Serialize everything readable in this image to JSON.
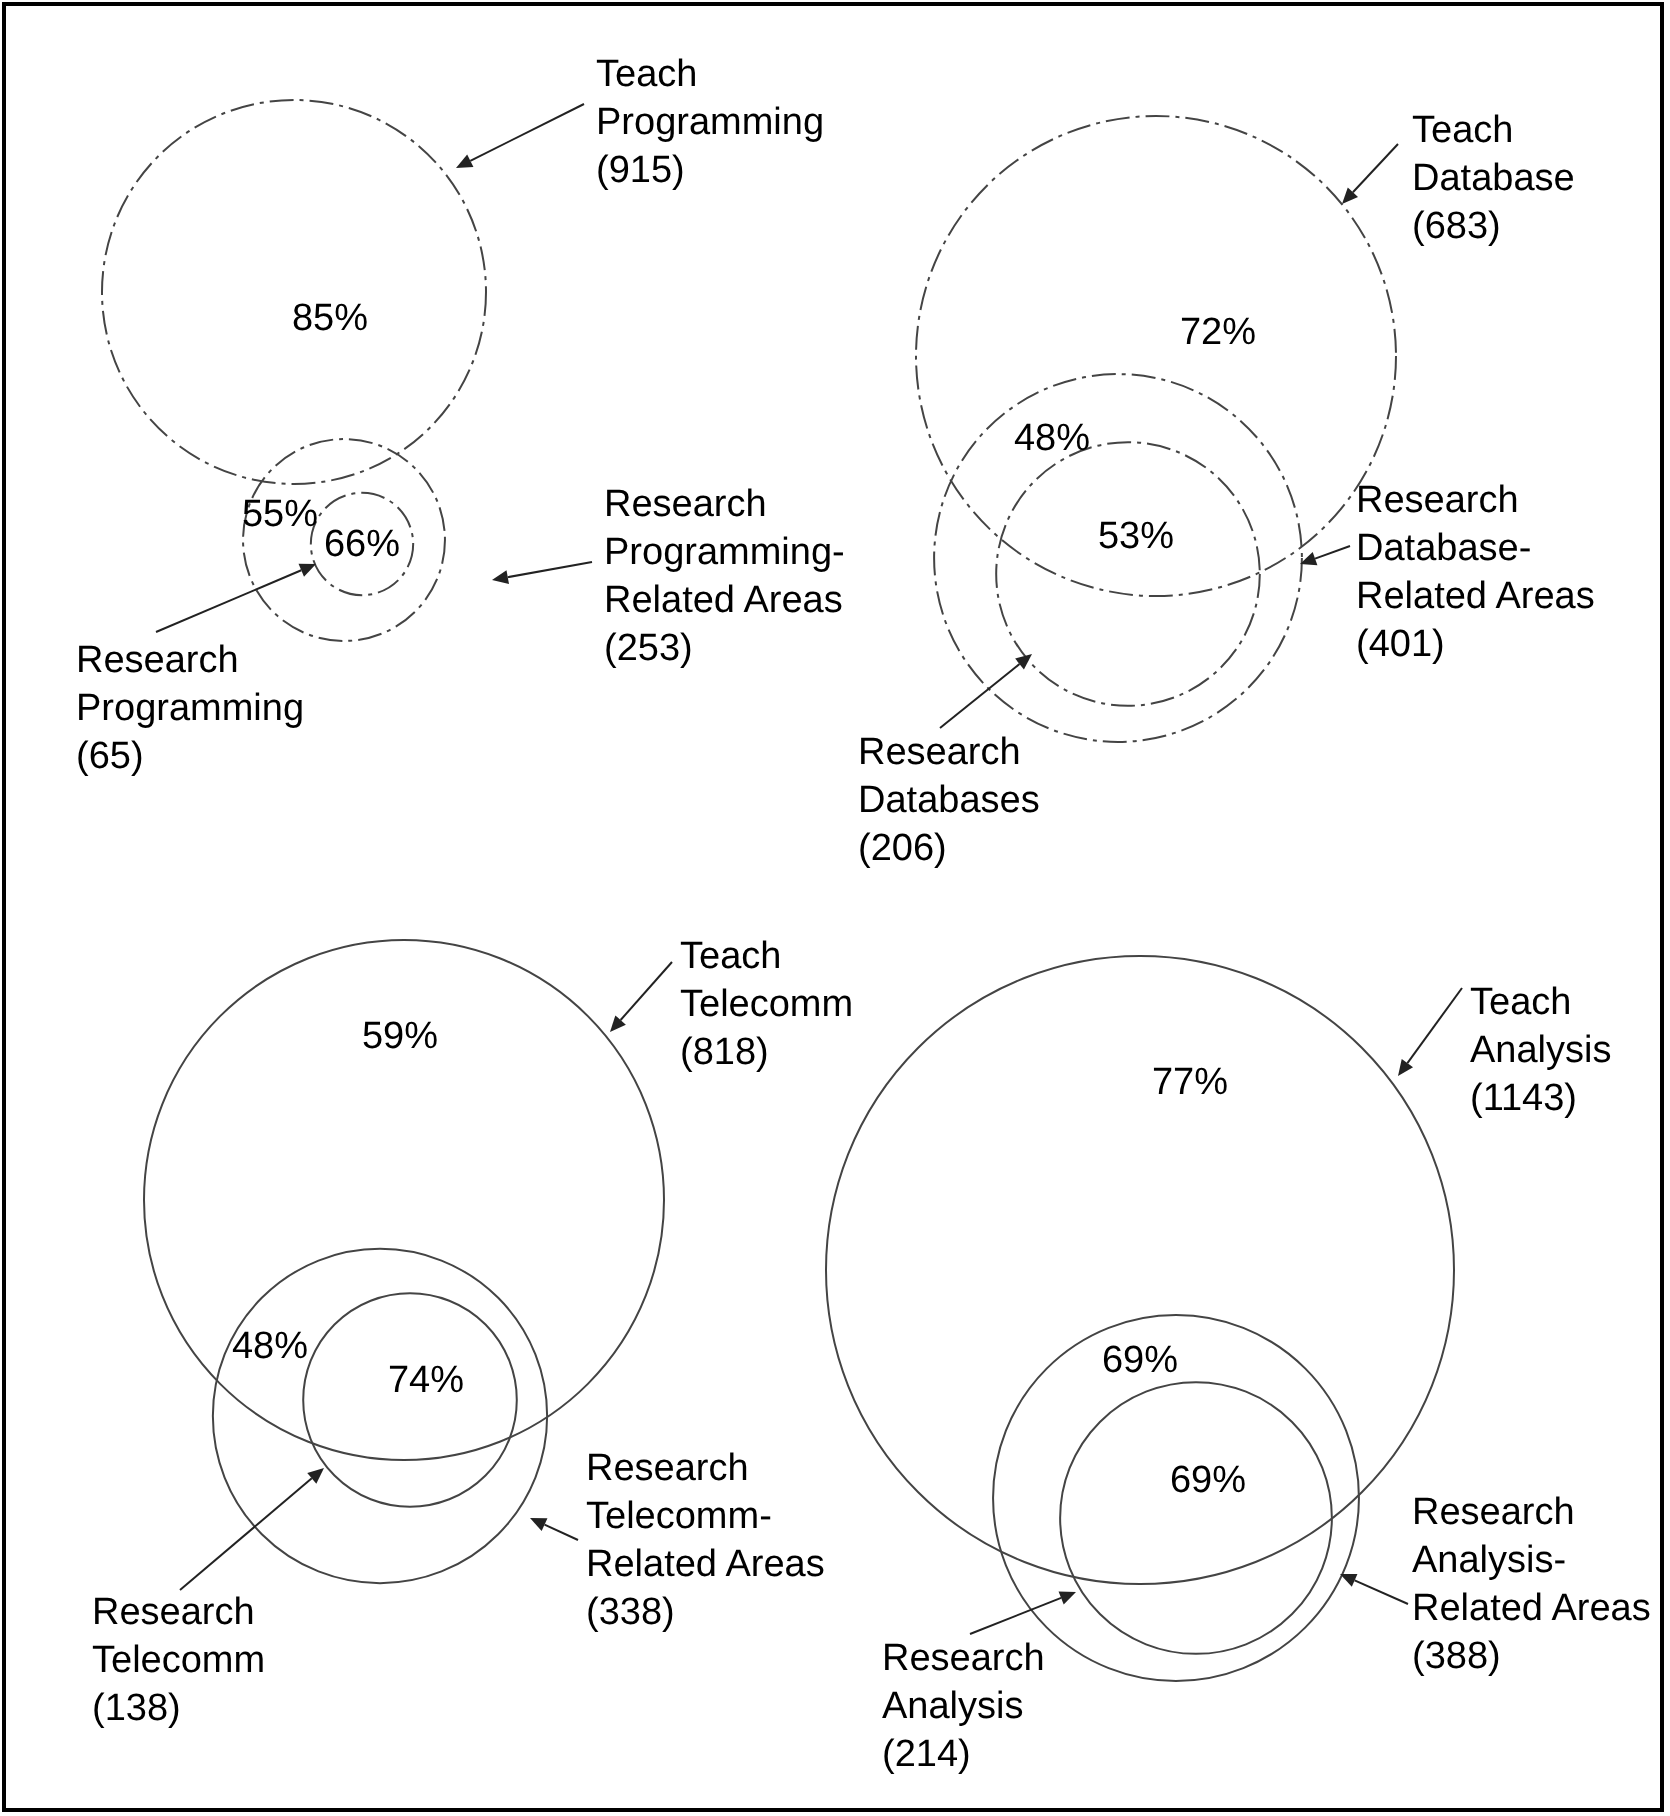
{
  "chart_data": [
    {
      "type": "other",
      "categories": [
        "Teach Programming",
        "Research Programming-Related Areas",
        "Research Programming"
      ],
      "values": [
        915,
        253,
        65
      ],
      "value_labels": [
        "(915)",
        "(253)",
        "(65)"
      ],
      "annotations": [
        "85%",
        "55%",
        "66%"
      ]
    },
    {
      "type": "other",
      "categories": [
        "Teach Database",
        "Research Database-Related Areas",
        "Research Databases"
      ],
      "values": [
        683,
        401,
        206
      ],
      "value_labels": [
        "(683)",
        "(401)",
        "(206)"
      ],
      "annotations": [
        "72%",
        "48%",
        "53%"
      ]
    },
    {
      "type": "other",
      "categories": [
        "Teach Telecomm",
        "Research Telecomm-Related Areas",
        "Research Telecomm"
      ],
      "values": [
        818,
        338,
        138
      ],
      "value_labels": [
        "(818)",
        "(338)",
        "(138)"
      ],
      "annotations": [
        "59%",
        "48%",
        "74%"
      ]
    },
    {
      "type": "other",
      "categories": [
        "Teach Analysis",
        "Research Analysis-Related Areas",
        "Research Analysis"
      ],
      "values": [
        1143,
        388,
        214
      ],
      "value_labels": [
        "(1143)",
        "(388)",
        "(214)"
      ],
      "annotations": [
        "77%",
        "69%",
        "69%"
      ]
    }
  ]
}
